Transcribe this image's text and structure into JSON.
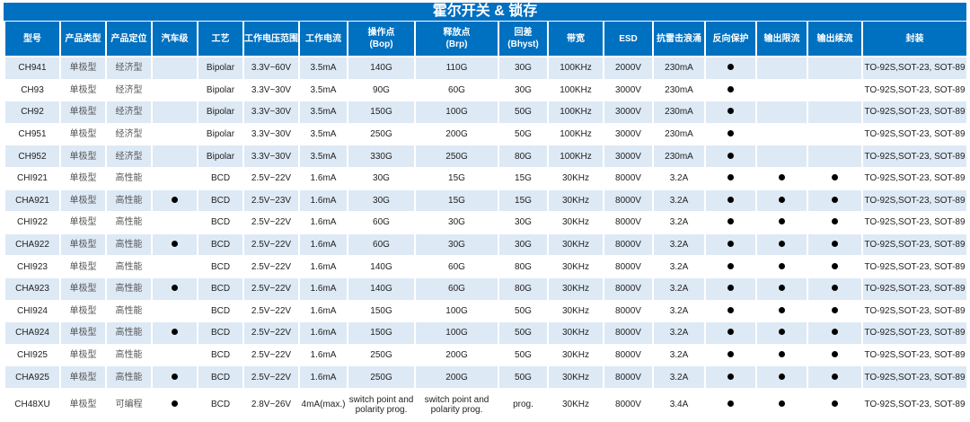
{
  "title": "霍尔开关 & 锁存",
  "headers": [
    "型号",
    "产品类型",
    "产品定位",
    "汽车级",
    "工艺",
    "工作电压范围",
    "工作电流",
    "操作点\n(Bop)",
    "释放点\n(Brp)",
    "回差\n(Bhyst)",
    "带宽",
    "ESD",
    "抗雷击浪涌",
    "反向保护",
    "输出限流",
    "输出续流",
    "封装"
  ],
  "dot_icon": "filled-circle",
  "rows": [
    [
      "CH941",
      "单极型",
      "经济型",
      "",
      "Bipolar",
      "3.3V~60V",
      "3.5mA",
      "140G",
      "110G",
      "30G",
      "100KHz",
      "2000V",
      "230mA",
      "●",
      "",
      "",
      "TO-92S,SOT-23, SOT-89"
    ],
    [
      "CH93",
      "单极型",
      "经济型",
      "",
      "Bipolar",
      "3.3V~30V",
      "3.5mA",
      "90G",
      "60G",
      "30G",
      "100KHz",
      "3000V",
      "230mA",
      "●",
      "",
      "",
      "TO-92S,SOT-23, SOT-89"
    ],
    [
      "CH92",
      "单极型",
      "经济型",
      "",
      "Bipolar",
      "3.3V~30V",
      "3.5mA",
      "150G",
      "100G",
      "50G",
      "100KHz",
      "3000V",
      "230mA",
      "●",
      "",
      "",
      "TO-92S,SOT-23, SOT-89"
    ],
    [
      "CH951",
      "单极型",
      "经济型",
      "",
      "Bipolar",
      "3.3V~30V",
      "3.5mA",
      "250G",
      "200G",
      "50G",
      "100KHz",
      "3000V",
      "230mA",
      "●",
      "",
      "",
      "TO-92S,SOT-23, SOT-89"
    ],
    [
      "CH952",
      "单极型",
      "经济型",
      "",
      "Bipolar",
      "3.3V~30V",
      "3.5mA",
      "330G",
      "250G",
      "80G",
      "100KHz",
      "3000V",
      "230mA",
      "●",
      "",
      "",
      "TO-92S,SOT-23, SOT-89"
    ],
    [
      "CHI921",
      "单极型",
      "高性能",
      "",
      "BCD",
      "2.5V~22V",
      "1.6mA",
      "30G",
      "15G",
      "15G",
      "30KHz",
      "8000V",
      "3.2A",
      "●",
      "●",
      "●",
      "TO-92S,SOT-23, SOT-89"
    ],
    [
      "CHA921",
      "单极型",
      "高性能",
      "●",
      "BCD",
      "2.5V~23V",
      "1.6mA",
      "30G",
      "15G",
      "15G",
      "30KHz",
      "8000V",
      "3.2A",
      "●",
      "●",
      "●",
      "TO-92S,SOT-23, SOT-89"
    ],
    [
      "CHI922",
      "单极型",
      "高性能",
      "",
      "BCD",
      "2.5V~22V",
      "1.6mA",
      "60G",
      "30G",
      "30G",
      "30KHz",
      "8000V",
      "3.2A",
      "●",
      "●",
      "●",
      "TO-92S,SOT-23, SOT-89"
    ],
    [
      "CHA922",
      "单极型",
      "高性能",
      "●",
      "BCD",
      "2.5V~22V",
      "1.6mA",
      "60G",
      "30G",
      "30G",
      "30KHz",
      "8000V",
      "3.2A",
      "●",
      "●",
      "●",
      "TO-92S,SOT-23, SOT-89"
    ],
    [
      "CHI923",
      "单极型",
      "高性能",
      "",
      "BCD",
      "2.5V~22V",
      "1.6mA",
      "140G",
      "60G",
      "80G",
      "30KHz",
      "8000V",
      "3.2A",
      "●",
      "●",
      "●",
      "TO-92S,SOT-23, SOT-89"
    ],
    [
      "CHA923",
      "单极型",
      "高性能",
      "●",
      "BCD",
      "2.5V~22V",
      "1.6mA",
      "140G",
      "60G",
      "80G",
      "30KHz",
      "8000V",
      "3.2A",
      "●",
      "●",
      "●",
      "TO-92S,SOT-23, SOT-89"
    ],
    [
      "CHI924",
      "单极型",
      "高性能",
      "",
      "BCD",
      "2.5V~22V",
      "1.6mA",
      "150G",
      "100G",
      "50G",
      "30KHz",
      "8000V",
      "3.2A",
      "●",
      "●",
      "●",
      "TO-92S,SOT-23, SOT-89"
    ],
    [
      "CHA924",
      "单极型",
      "高性能",
      "●",
      "BCD",
      "2.5V~22V",
      "1.6mA",
      "150G",
      "100G",
      "50G",
      "30KHz",
      "8000V",
      "3.2A",
      "●",
      "●",
      "●",
      "TO-92S,SOT-23, SOT-89"
    ],
    [
      "CHI925",
      "单极型",
      "高性能",
      "",
      "BCD",
      "2.5V~22V",
      "1.6mA",
      "250G",
      "200G",
      "50G",
      "30KHz",
      "8000V",
      "3.2A",
      "●",
      "●",
      "●",
      "TO-92S,SOT-23, SOT-89"
    ],
    [
      "CHA925",
      "单极型",
      "高性能",
      "●",
      "BCD",
      "2.5V~22V",
      "1.6mA",
      "250G",
      "200G",
      "50G",
      "30KHz",
      "8000V",
      "3.2A",
      "●",
      "●",
      "●",
      "TO-92S,SOT-23, SOT-89"
    ],
    [
      "CH48XU",
      "单极型",
      "可编程",
      "●",
      "BCD",
      "2.8V~26V",
      "4mA(max.)",
      "switch point and polarity prog.",
      "switch point and polarity prog.",
      "prog.",
      "30KHz",
      "8000V",
      "3.4A",
      "●",
      "●",
      "●",
      "TO-92S,SOT-23, SOT-89"
    ]
  ]
}
